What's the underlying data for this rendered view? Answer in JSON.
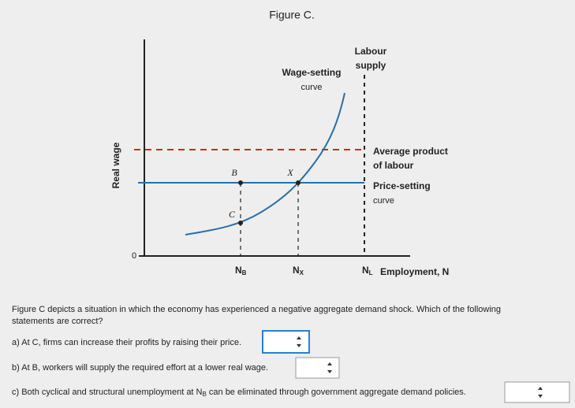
{
  "figure": {
    "title": "Figure C.",
    "y_axis_label": "Real wage",
    "origin_label": "0",
    "wage_setting": [
      "Wage-setting",
      "curve"
    ],
    "labour_supply": [
      "Labour",
      "supply"
    ],
    "average_product": [
      "Average product",
      "of labour"
    ],
    "price_setting": [
      "Price-setting",
      "curve"
    ],
    "points": [
      "B",
      "X",
      "C"
    ],
    "x_labels": [
      {
        "base": "N",
        "sub": "B"
      },
      {
        "base": "N",
        "sub": "X"
      },
      {
        "base": "N",
        "sub": "L"
      }
    ],
    "x_axis_label": "Employment, N"
  },
  "question": {
    "prompt": [
      "Figure C depicts a situation in which the economy has experienced a negative aggregate demand shock. Which of the following",
      "statements are correct?"
    ],
    "items": [
      {
        "text": "a) At C, firms can increase their profits by raising their price."
      },
      {
        "text": "b) At B, workers will supply the required effort at a lower real wage."
      },
      {
        "text_before": "c) Both cyclical and structural unemployment at N",
        "sub": "B",
        "text_after": " can be eliminated through government aggregate demand policies."
      }
    ]
  }
}
